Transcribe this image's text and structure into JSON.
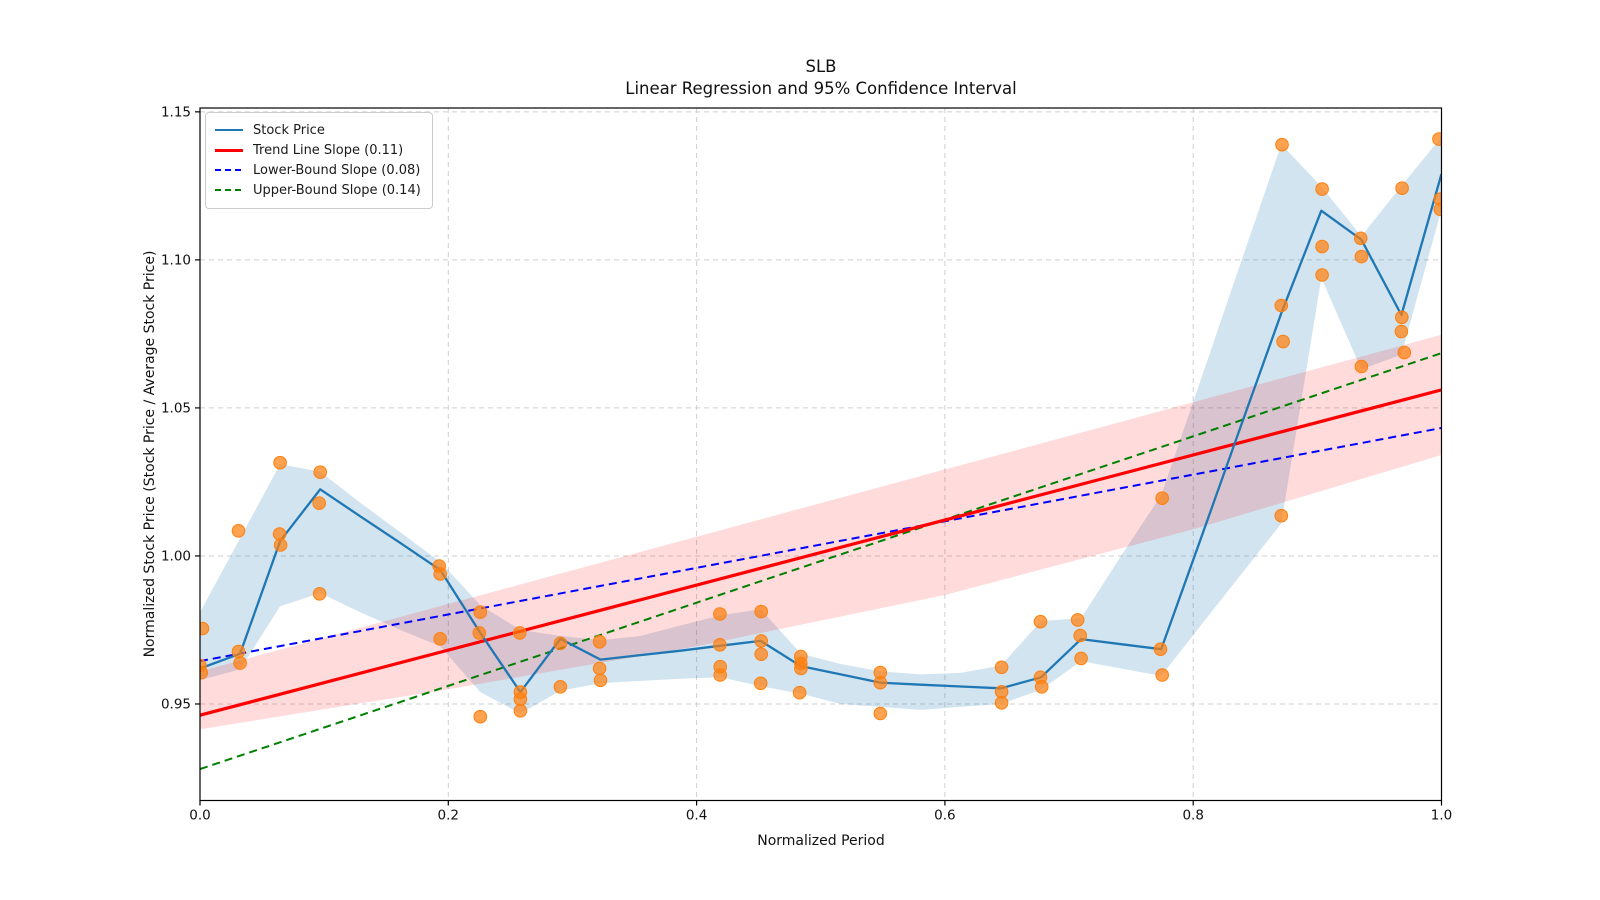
{
  "chart_data": {
    "type": "line",
    "title": "SLB",
    "subtitle": "Linear Regression and 95% Confidence Interval",
    "xlabel": "Normalized Period",
    "ylabel": "Normalized Stock Price (Stock Price / Average Stock Price)",
    "xlim": [
      0.0,
      1.0
    ],
    "ylim": [
      0.9174,
      1.1513
    ],
    "grid": true,
    "xticks": [
      0.0,
      0.2,
      0.4,
      0.6,
      0.8,
      1.0
    ],
    "xtick_labels": [
      "0.0",
      "0.2",
      "0.4",
      "0.6",
      "0.8",
      "1.0"
    ],
    "yticks": [
      0.95,
      1.0,
      1.05,
      1.1,
      1.15
    ],
    "ytick_labels": [
      "0.95",
      "1.00",
      "1.05",
      "1.10",
      "1.15"
    ],
    "legend": [
      {
        "label": "Stock Price",
        "color": "#1f77b4",
        "dash": false,
        "lw": 2.5
      },
      {
        "label": "Trend Line Slope (0.11)",
        "color": "#ff0000",
        "dash": false,
        "lw": 3
      },
      {
        "label": "Lower-Bound Slope (0.08)",
        "color": "#0000ff",
        "dash": true,
        "lw": 2
      },
      {
        "label": "Upper-Bound Slope (0.14)",
        "color": "#008000",
        "dash": true,
        "lw": 2
      }
    ],
    "colors": {
      "stock_line": "#1f77b4",
      "stock_band_fill": "rgba(31,119,180,0.20)",
      "scatter_fill": "rgba(255,127,14,0.72)",
      "scatter_edge": "#ff7f0e",
      "trend_line": "#ff0000",
      "trend_band_fill": "rgba(255,0,0,0.14)",
      "lower_bound": "#0000ff",
      "upper_bound": "#008000",
      "grid": "#cfcfcf",
      "spine": "#000000"
    },
    "stock_line": {
      "x": [
        0.0,
        0.0323,
        0.0645,
        0.0968,
        0.129,
        0.1613,
        0.1935,
        0.2258,
        0.2581,
        0.2903,
        0.3226,
        0.3548,
        0.3871,
        0.4194,
        0.4516,
        0.4839,
        0.5161,
        0.5484,
        0.5806,
        0.6129,
        0.6452,
        0.6774,
        0.7097,
        0.7419,
        0.7742,
        0.8065,
        0.8387,
        0.871,
        0.9032,
        0.9355,
        0.9677,
        1.0
      ],
      "y": [
        0.962,
        0.967,
        1.005,
        1.0225,
        1.0134,
        1.0044,
        0.9953,
        0.974,
        0.954,
        0.972,
        0.965,
        0.9665,
        0.968,
        0.9697,
        0.9713,
        0.9628,
        0.96,
        0.9572,
        0.9565,
        0.9559,
        0.9553,
        0.959,
        0.9719,
        0.9702,
        0.9685,
        1.0063,
        1.0442,
        1.082,
        1.1166,
        1.1068,
        1.0814,
        1.129
      ]
    },
    "stock_band": {
      "x": [
        0.0,
        0.0323,
        0.0645,
        0.0968,
        0.129,
        0.1613,
        0.1935,
        0.2258,
        0.2581,
        0.2903,
        0.3226,
        0.3548,
        0.3871,
        0.4194,
        0.4516,
        0.4839,
        0.5161,
        0.5484,
        0.5806,
        0.6129,
        0.6452,
        0.6774,
        0.7097,
        0.7419,
        0.7742,
        0.8065,
        0.8387,
        0.871,
        0.9032,
        0.9355,
        0.9677,
        1.0
      ],
      "upper": [
        0.981,
        1.006,
        1.031,
        1.0285,
        1.018,
        1.008,
        0.998,
        0.9834,
        0.975,
        0.973,
        0.9715,
        0.973,
        0.9765,
        0.98,
        0.982,
        0.967,
        0.9635,
        0.961,
        0.96,
        0.9605,
        0.963,
        0.978,
        0.979,
        1.0,
        1.0205,
        1.06,
        1.0995,
        1.139,
        1.1248,
        1.108,
        1.125,
        1.1415
      ],
      "lower": [
        0.958,
        0.9617,
        0.983,
        0.9875,
        0.981,
        0.975,
        0.9695,
        0.954,
        0.9468,
        0.9545,
        0.957,
        0.9578,
        0.9585,
        0.959,
        0.956,
        0.9535,
        0.95,
        0.949,
        0.948,
        0.949,
        0.95,
        0.9548,
        0.9645,
        0.962,
        0.9595,
        0.9767,
        0.9938,
        1.011,
        1.0939,
        1.063,
        1.068,
        1.117
      ]
    },
    "scatter": [
      [
        0.002,
        0.9755
      ],
      [
        0.0,
        0.963
      ],
      [
        0.001,
        0.9606
      ],
      [
        0.031,
        1.0085
      ],
      [
        0.031,
        0.9677
      ],
      [
        0.0323,
        0.9638
      ],
      [
        0.0645,
        1.0315
      ],
      [
        0.0641,
        1.0074
      ],
      [
        0.0649,
        1.0037
      ],
      [
        0.0968,
        1.0283
      ],
      [
        0.096,
        1.0178
      ],
      [
        0.0963,
        0.9872
      ],
      [
        0.1927,
        0.9966
      ],
      [
        0.1935,
        0.9939
      ],
      [
        0.1935,
        0.972
      ],
      [
        0.2258,
        0.981
      ],
      [
        0.225,
        0.974
      ],
      [
        0.2258,
        0.9457
      ],
      [
        0.2575,
        0.974
      ],
      [
        0.2581,
        0.954
      ],
      [
        0.2581,
        0.9516
      ],
      [
        0.2581,
        0.9477
      ],
      [
        0.2903,
        0.9705
      ],
      [
        0.2903,
        0.9558
      ],
      [
        0.3219,
        0.971
      ],
      [
        0.3219,
        0.962
      ],
      [
        0.3226,
        0.958
      ],
      [
        0.4188,
        0.9804
      ],
      [
        0.4188,
        0.97
      ],
      [
        0.419,
        0.9626
      ],
      [
        0.419,
        0.9598
      ],
      [
        0.452,
        0.9812
      ],
      [
        0.452,
        0.9713
      ],
      [
        0.452,
        0.9668
      ],
      [
        0.4516,
        0.957
      ],
      [
        0.4839,
        0.966
      ],
      [
        0.4839,
        0.9637
      ],
      [
        0.484,
        0.962
      ],
      [
        0.483,
        0.9538
      ],
      [
        0.548,
        0.9606
      ],
      [
        0.548,
        0.9572
      ],
      [
        0.548,
        0.9468
      ],
      [
        0.6457,
        0.9624
      ],
      [
        0.6457,
        0.9541
      ],
      [
        0.6457,
        0.9504
      ],
      [
        0.677,
        0.9778
      ],
      [
        0.677,
        0.959
      ],
      [
        0.678,
        0.9558
      ],
      [
        0.707,
        0.9784
      ],
      [
        0.709,
        0.9731
      ],
      [
        0.7097,
        0.9654
      ],
      [
        0.775,
        1.0195
      ],
      [
        0.7737,
        0.9685
      ],
      [
        0.775,
        0.9598
      ],
      [
        0.8715,
        1.1389
      ],
      [
        0.871,
        1.0846
      ],
      [
        0.8724,
        1.0724
      ],
      [
        0.871,
        1.0136
      ],
      [
        0.9038,
        1.1239
      ],
      [
        0.9038,
        1.1045
      ],
      [
        0.9038,
        1.0949
      ],
      [
        0.9349,
        1.1073
      ],
      [
        0.9355,
        1.1011
      ],
      [
        0.9355,
        1.064
      ],
      [
        0.9683,
        1.1242
      ],
      [
        0.968,
        1.0806
      ],
      [
        0.9677,
        1.0758
      ],
      [
        0.97,
        1.0687
      ],
      [
        0.998,
        1.1408
      ],
      [
        0.999,
        1.1205
      ],
      [
        0.999,
        1.1171
      ]
    ],
    "trend_line": {
      "x": [
        0.0,
        1.0
      ],
      "y": [
        0.9462,
        1.0561
      ],
      "slope": 0.11
    },
    "lower_bound": {
      "x": [
        0.0,
        1.0
      ],
      "y": [
        0.9645,
        1.0432
      ],
      "slope": 0.08
    },
    "upper_bound": {
      "x": [
        0.0,
        1.0
      ],
      "y": [
        0.928,
        1.0685
      ],
      "slope": 0.14
    },
    "trend_band": {
      "x": [
        0.0,
        0.2,
        0.4,
        0.6,
        0.8,
        1.0
      ],
      "upper": [
        0.961,
        0.9838,
        1.0065,
        1.0292,
        1.0519,
        1.0747
      ],
      "lower": [
        0.9414,
        0.955,
        0.9695,
        0.9868,
        1.009,
        1.0341
      ]
    }
  }
}
